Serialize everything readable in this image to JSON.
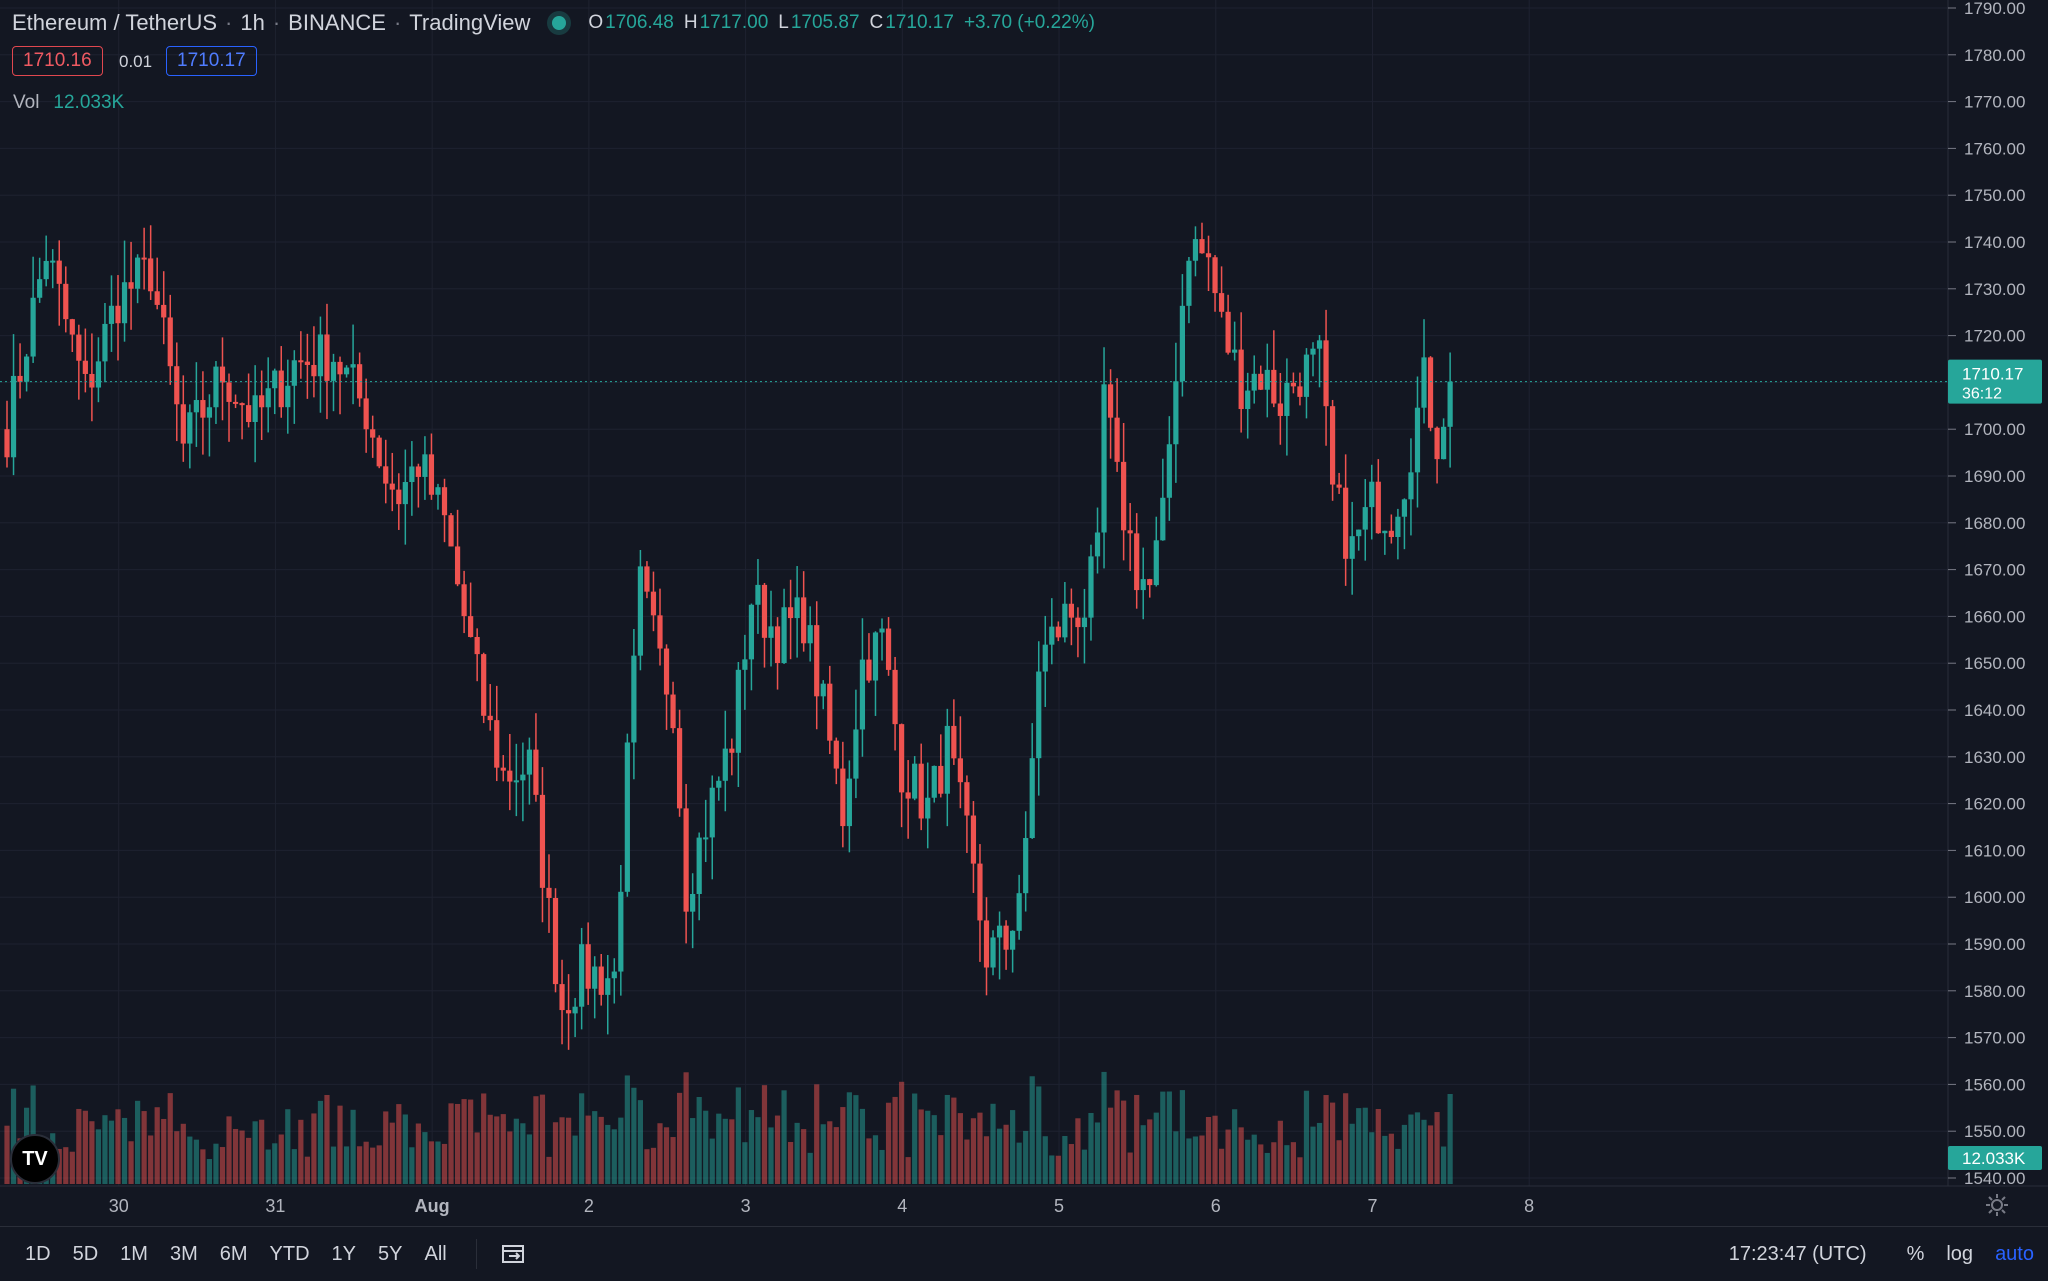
{
  "header": {
    "symbol": "Ethereum / TetherUS",
    "interval": "1h",
    "exchange": "BINANCE",
    "platform": "TradingView",
    "open_label": "O",
    "open": "1706.48",
    "high_label": "H",
    "high": "1717.00",
    "low_label": "L",
    "low": "1705.87",
    "close_label": "C",
    "close": "1710.17",
    "change": "+3.70 (+0.22%)"
  },
  "quote": {
    "bid": "1710.16",
    "spread": "0.01",
    "ask": "1710.17"
  },
  "volume": {
    "label": "Vol",
    "value": "12.033K"
  },
  "price_marker": {
    "price": "1710.17",
    "countdown": "36:12"
  },
  "volume_marker": "12.033K",
  "bottom_bar": {
    "ranges": [
      "1D",
      "5D",
      "1M",
      "3M",
      "6M",
      "YTD",
      "1Y",
      "5Y",
      "All"
    ],
    "time": "17:23:47 (UTC)",
    "percent": "%",
    "log": "log",
    "auto": "auto"
  },
  "colors": {
    "up": "#26a69a",
    "down": "#ef5350",
    "background": "#131722",
    "accent": "#2962ff"
  },
  "icons": {
    "logo": "tradingview-logo-icon",
    "date_range": "calendar-range-icon",
    "settings": "gear-icon"
  },
  "chart_data": {
    "type": "candlestick",
    "y_ticks": [
      1540,
      1550,
      1560,
      1570,
      1580,
      1590,
      1600,
      1610,
      1620,
      1630,
      1640,
      1650,
      1660,
      1670,
      1680,
      1690,
      1700,
      1710,
      1720,
      1730,
      1740,
      1750,
      1760,
      1770,
      1780,
      1790
    ],
    "x_ticks": [
      {
        "label": "30",
        "t": 7
      },
      {
        "label": "31",
        "t": 31
      },
      {
        "label": "Aug",
        "t": 55
      },
      {
        "label": "2",
        "t": 79
      },
      {
        "label": "3",
        "t": 103
      },
      {
        "label": "4",
        "t": 127
      },
      {
        "label": "5",
        "t": 151
      },
      {
        "label": "6",
        "t": 175
      },
      {
        "label": "7",
        "t": 199
      },
      {
        "label": "8",
        "t": 223
      }
    ],
    "current_price": 1710.17,
    "candles_note_units": "USDT, hourly",
    "anchors": [
      [
        0,
        1700,
        1
      ],
      [
        6,
        1738,
        1
      ],
      [
        12,
        1708,
        1
      ],
      [
        17,
        1728,
        1
      ],
      [
        22,
        1734,
        1
      ],
      [
        27,
        1696,
        1
      ],
      [
        33,
        1712,
        1
      ],
      [
        38,
        1702,
        1
      ],
      [
        44,
        1714,
        1
      ],
      [
        50,
        1716,
        1
      ],
      [
        55,
        1704,
        1
      ],
      [
        58,
        1690,
        1
      ],
      [
        60,
        1686,
        1
      ],
      [
        63,
        1693,
        1
      ],
      [
        67,
        1680,
        1
      ],
      [
        70,
        1660,
        1
      ],
      [
        73,
        1640,
        1
      ],
      [
        76,
        1626,
        1
      ],
      [
        80,
        1628,
        1
      ],
      [
        83,
        1596,
        1
      ],
      [
        85,
        1577,
        1
      ],
      [
        88,
        1584,
        1
      ],
      [
        93,
        1583,
        1
      ],
      [
        95,
        1628,
        1
      ],
      [
        97,
        1666,
        1
      ],
      [
        100,
        1650,
        1
      ],
      [
        102,
        1642,
        1
      ],
      [
        104,
        1602,
        1
      ],
      [
        107,
        1616,
        1
      ],
      [
        111,
        1634,
        1
      ],
      [
        114,
        1664,
        1
      ],
      [
        118,
        1656,
        1
      ],
      [
        122,
        1660,
        1
      ],
      [
        125,
        1640,
        1
      ],
      [
        128,
        1618,
        1
      ],
      [
        131,
        1650,
        1
      ],
      [
        134,
        1655,
        1
      ],
      [
        137,
        1628,
        1
      ],
      [
        141,
        1619,
        1
      ],
      [
        144,
        1632,
        1
      ],
      [
        147,
        1612,
        1
      ],
      [
        150,
        1588,
        1
      ],
      [
        153,
        1590,
        1
      ],
      [
        156,
        1608,
        1
      ],
      [
        158,
        1650,
        1
      ],
      [
        162,
        1660,
        1
      ],
      [
        165,
        1662,
        1
      ],
      [
        167,
        1672,
        1
      ],
      [
        168,
        1708,
        1
      ],
      [
        170,
        1688,
        1
      ],
      [
        173,
        1670,
        1
      ],
      [
        175,
        1666,
        1
      ],
      [
        177,
        1680,
        1
      ],
      [
        179,
        1714,
        1
      ],
      [
        181,
        1740,
        1
      ],
      [
        184,
        1736,
        1
      ],
      [
        186,
        1722,
        1
      ],
      [
        189,
        1710,
        1
      ],
      [
        192,
        1712,
        1
      ],
      [
        195,
        1706,
        1
      ],
      [
        198,
        1712,
        1
      ],
      [
        201,
        1714,
        1
      ],
      [
        203,
        1686,
        1
      ],
      [
        206,
        1674,
        1
      ],
      [
        209,
        1684,
        1
      ],
      [
        212,
        1682,
        1
      ],
      [
        214,
        1690,
        1
      ],
      [
        217,
        1710,
        1
      ],
      [
        219,
        1698,
        1
      ],
      [
        221,
        1710.17,
        1
      ]
    ]
  }
}
